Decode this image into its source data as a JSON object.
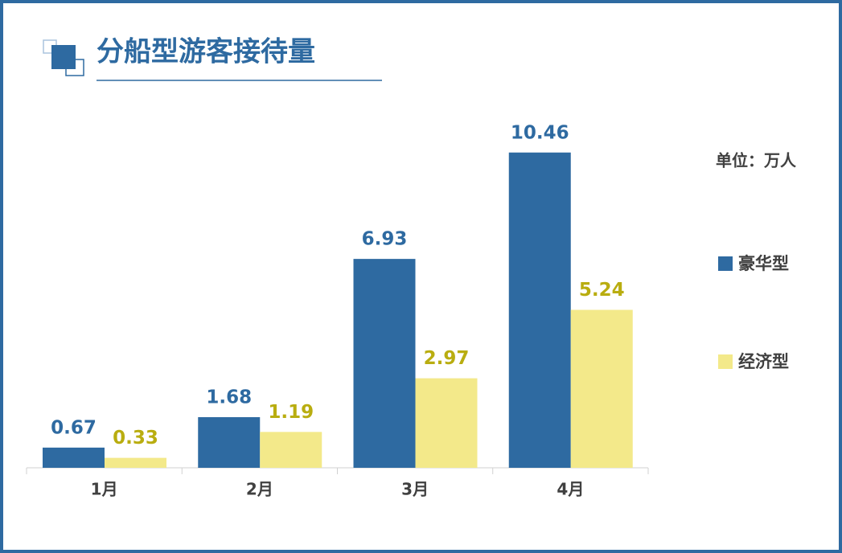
{
  "chart_data": {
    "type": "bar",
    "title": "分船型游客接待量",
    "unit": "单位：万人",
    "categories": [
      "1月",
      "2月",
      "3月",
      "4月"
    ],
    "series": [
      {
        "name": "豪华型",
        "color": "#2e6aa1",
        "label_color": "#2e6aa1",
        "values": [
          0.67,
          1.68,
          6.93,
          10.46
        ]
      },
      {
        "name": "经济型",
        "color": "#f3e98a",
        "label_color": "#b9ad10",
        "values": [
          0.33,
          1.19,
          2.97,
          5.24
        ]
      }
    ],
    "legend": "right"
  }
}
